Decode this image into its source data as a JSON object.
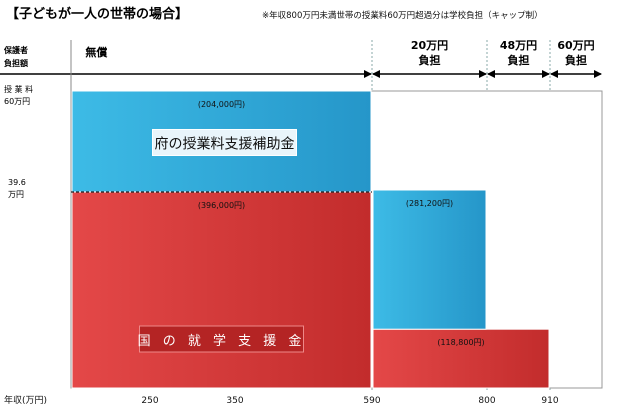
{
  "header": {
    "title": "【子どもが一人の世帯の場合】",
    "note": "※年収800万円未満世帯の授業料60万円超過分は学校負担（キャップ制）"
  },
  "left_labels": {
    "burden_line1": "保護者",
    "burden_line2": "負担額",
    "tuition_line1": "授 業 料",
    "tuition_line2": "60万円",
    "mid_line1": "39.6",
    "mid_line2": "万円",
    "x_axis": "年収(万円)"
  },
  "burden_bands": [
    {
      "from": 0,
      "to": 590,
      "line1": "無償",
      "line2": ""
    },
    {
      "from": 590,
      "to": 800,
      "line1": "20万円",
      "line2": "負担"
    },
    {
      "from": 800,
      "to": 910,
      "line1": "48万円",
      "line2": "負担"
    },
    {
      "from": 910,
      "to": 1000,
      "line1": "60万円",
      "line2": "負担"
    }
  ],
  "chart_data": {
    "type": "bar",
    "xlabel": "年収(万円)",
    "ylabel": "授業料",
    "xlim": [
      190,
      1000
    ],
    "ylim": [
      0,
      60
    ],
    "x_ticks": [
      250,
      350,
      590,
      800,
      910
    ],
    "y_ticks": [
      {
        "value": 60,
        "label": "60万円"
      },
      {
        "value": 39.6,
        "label": "39.6 万円"
      }
    ],
    "series": [
      {
        "name": "国の就学支援金",
        "color": "#d93a3a",
        "segments": [
          {
            "from": 190,
            "to": 590,
            "value": 39.6,
            "label": "(396,000円)"
          },
          {
            "from": 590,
            "to": 910,
            "value": 11.88,
            "label": "(118,800円)"
          }
        ]
      },
      {
        "name": "府の授業料支援補助金",
        "color": "#2aa9d8",
        "segments": [
          {
            "from": 190,
            "to": 590,
            "base": 39.6,
            "value": 20.4,
            "label": "(204,000円)"
          },
          {
            "from": 590,
            "to": 800,
            "base": 11.88,
            "value": 28.12,
            "label": "(281,200円)"
          }
        ]
      }
    ],
    "series_labels": [
      "府の授業料支援補助金",
      "国 の 就 学 支 援 金"
    ],
    "dashed_line_at": 39.6
  }
}
